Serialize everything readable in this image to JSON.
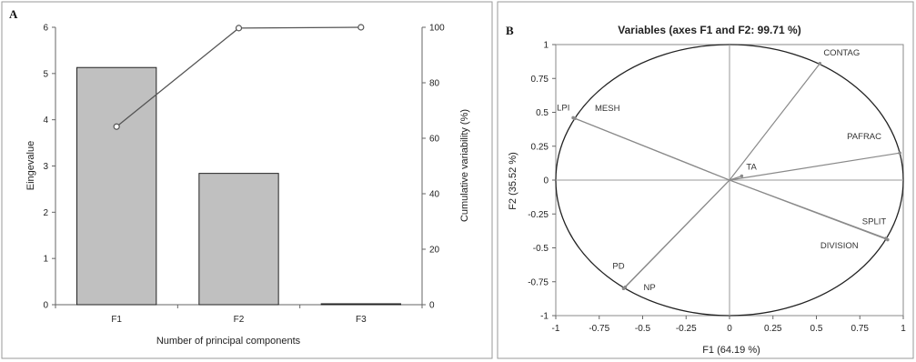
{
  "chart_data": [
    {
      "panel": "A",
      "type": "bar",
      "categories": [
        "F1",
        "F2",
        "F3"
      ],
      "series": [
        {
          "values": [
            5.13,
            2.84,
            0.02
          ]
        }
      ],
      "line_series": {
        "values": [
          64.19,
          99.71,
          100
        ]
      },
      "xlabel": "Number of principal components",
      "ylabel": "Eingevalue",
      "y2label": "Cumulative variability (%)",
      "ylim": [
        0,
        6
      ],
      "y2lim": [
        0,
        100
      ],
      "yticks": [
        0,
        1,
        2,
        3,
        4,
        5,
        6
      ],
      "y2ticks": [
        0,
        20,
        40,
        60,
        80,
        100
      ],
      "grid": false,
      "bar_color": "#c0c0c0",
      "line_color": "#555555"
    },
    {
      "panel": "B",
      "type": "scatter",
      "title": "Variables (axes F1 and  F2: 99.71 %)",
      "xlabel": "F1 (64.19 %)",
      "ylabel": "F2 (35.52 %)",
      "xlim": [
        -1,
        1
      ],
      "ylim": [
        -1,
        1
      ],
      "xticks": [
        "-1",
        "-0.75",
        "-0.5",
        "-0.25",
        "0",
        "0.25",
        "0.5",
        "0.75",
        "1"
      ],
      "yticks": [
        "1",
        "0.75",
        "0.5",
        "0.25",
        "0",
        "-0.25",
        "-0.5",
        "-0.75",
        "-1"
      ],
      "grid": false,
      "circle": true,
      "vectors": [
        {
          "label": "CONTAG",
          "x": 0.52,
          "y": 0.86
        },
        {
          "label": "LPI",
          "x": -0.9,
          "y": 0.46
        },
        {
          "label": "MESH",
          "x": -0.89,
          "y": 0.455
        },
        {
          "label": "PAFRAC",
          "x": 0.98,
          "y": 0.2
        },
        {
          "label": "TA",
          "x": 0.07,
          "y": 0.03
        },
        {
          "label": "SPLIT",
          "x": 0.91,
          "y": -0.44
        },
        {
          "label": "DIVISION",
          "x": 0.9,
          "y": -0.43
        },
        {
          "label": "PD",
          "x": -0.6,
          "y": -0.79
        },
        {
          "label": "NP",
          "x": -0.61,
          "y": -0.8
        }
      ],
      "vector_color": "#8a8a8a"
    }
  ]
}
